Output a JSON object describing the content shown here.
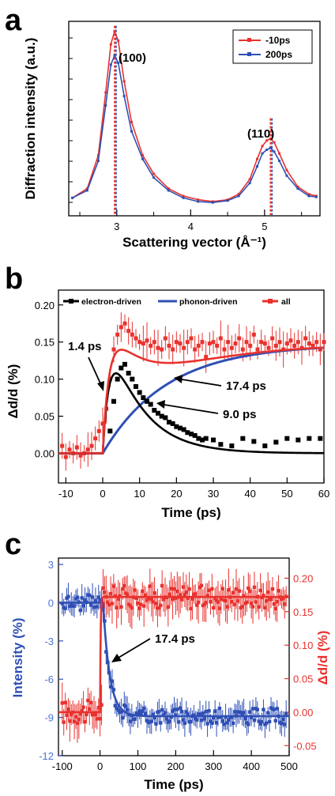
{
  "colors": {
    "red": "#e8322e",
    "blue": "#2f4fb5",
    "black": "#000000",
    "lightblue": "#4e73d6"
  },
  "chart_data": [
    {
      "panel": "a",
      "type": "line",
      "xlabel": "Scattering vector (Å⁻¹)",
      "ylabel": "Diffraction intensity (a.u.)",
      "xlim": [
        2.35,
        5.75
      ],
      "xticks": [
        "3",
        "4",
        "5"
      ],
      "legend_position": "top-right",
      "series": [
        {
          "name": "-10ps",
          "color": "red",
          "x": [
            2.4,
            2.6,
            2.75,
            2.85,
            2.92,
            2.97,
            3.02,
            3.1,
            3.2,
            3.35,
            3.5,
            3.7,
            3.9,
            4.1,
            4.3,
            4.5,
            4.65,
            4.8,
            4.9,
            4.97,
            5.03,
            5.08,
            5.13,
            5.2,
            5.3,
            5.45,
            5.6,
            5.7
          ],
          "y": [
            0.05,
            0.1,
            0.28,
            0.62,
            0.88,
            0.95,
            0.9,
            0.68,
            0.46,
            0.28,
            0.18,
            0.1,
            0.06,
            0.04,
            0.03,
            0.04,
            0.07,
            0.15,
            0.26,
            0.33,
            0.36,
            0.37,
            0.35,
            0.29,
            0.2,
            0.11,
            0.07,
            0.06
          ]
        },
        {
          "name": "200ps",
          "color": "blue",
          "x": [
            2.4,
            2.6,
            2.75,
            2.85,
            2.92,
            2.97,
            3.02,
            3.1,
            3.2,
            3.35,
            3.5,
            3.7,
            3.9,
            4.1,
            4.3,
            4.5,
            4.65,
            4.8,
            4.9,
            4.97,
            5.03,
            5.08,
            5.13,
            5.2,
            5.3,
            5.45,
            5.6,
            5.7
          ],
          "y": [
            0.05,
            0.09,
            0.25,
            0.55,
            0.77,
            0.82,
            0.78,
            0.6,
            0.41,
            0.26,
            0.16,
            0.09,
            0.05,
            0.03,
            0.025,
            0.035,
            0.06,
            0.13,
            0.22,
            0.29,
            0.31,
            0.32,
            0.3,
            0.25,
            0.17,
            0.1,
            0.06,
            0.055
          ]
        }
      ],
      "peak_positions": {
        "-10ps": [
          2.97,
          5.08
        ],
        "200ps": [
          2.99,
          5.1
        ]
      },
      "annotations": [
        "(100)",
        "(110)"
      ]
    },
    {
      "panel": "b",
      "type": "scatter",
      "xlabel": "Time (ps)",
      "ylabel": "Δd/d (%)",
      "xlim": [
        -12,
        60
      ],
      "ylim": [
        -0.04,
        0.22
      ],
      "xticks": [
        -10,
        0,
        10,
        20,
        30,
        40,
        50,
        60
      ],
      "yticks": [
        0.0,
        0.05,
        0.1,
        0.15,
        0.2
      ],
      "legend_position": "top",
      "series": [
        {
          "name": "electron-driven",
          "color": "black",
          "kind": "fit+points",
          "points_x": [
            2,
            3,
            4,
            5,
            6,
            7,
            8,
            9,
            10,
            11,
            12,
            13,
            14,
            15,
            16,
            17,
            18,
            19,
            20,
            21,
            22,
            23,
            24,
            25,
            26,
            27,
            28,
            30,
            32,
            35,
            38,
            41,
            44,
            47,
            50,
            53,
            56,
            59
          ],
          "points_y": [
            0.03,
            0.07,
            0.1,
            0.115,
            0.12,
            0.108,
            0.1,
            0.09,
            0.082,
            0.075,
            0.07,
            0.066,
            0.058,
            0.054,
            0.05,
            0.048,
            0.042,
            0.04,
            0.036,
            0.034,
            0.032,
            0.028,
            0.026,
            0.024,
            0.02,
            0.018,
            0.02,
            0.018,
            0.012,
            0.01,
            0.02,
            0.016,
            0.01,
            0.015,
            0.02,
            0.018,
            0.02,
            0.02
          ]
        },
        {
          "name": "phonon-driven",
          "color": "blue",
          "kind": "fit"
        },
        {
          "name": "all",
          "color": "red",
          "kind": "fit+points-with-errorbars",
          "points_x": [
            -11,
            -10,
            -9,
            -8,
            -7,
            -6,
            -5,
            -4,
            -3,
            -2,
            -1,
            0,
            1,
            2,
            3,
            4,
            5,
            6,
            7,
            8,
            9,
            10,
            11,
            12,
            13,
            14,
            15,
            16,
            17,
            18,
            19,
            20,
            21,
            22,
            23,
            24,
            25,
            26,
            27,
            28,
            29,
            30,
            31,
            32,
            33,
            34,
            35,
            36,
            37,
            38,
            39,
            40,
            41,
            42,
            43,
            44,
            45,
            46,
            47,
            48,
            49,
            50,
            51,
            52,
            53,
            54,
            55,
            56,
            57,
            58,
            59,
            60
          ],
          "points_y": [
            0.01,
            -0.005,
            0.005,
            0.0,
            0.008,
            -0.003,
            0.0,
            0.005,
            0.01,
            0.02,
            0.03,
            0.04,
            0.06,
            0.1,
            0.14,
            0.16,
            0.17,
            0.175,
            0.165,
            0.16,
            0.155,
            0.15,
            0.148,
            0.152,
            0.145,
            0.15,
            0.142,
            0.14,
            0.155,
            0.145,
            0.14,
            0.15,
            0.148,
            0.142,
            0.15,
            0.155,
            0.14,
            0.145,
            0.15,
            0.13,
            0.148,
            0.15,
            0.145,
            0.155,
            0.14,
            0.15,
            0.142,
            0.148,
            0.155,
            0.14,
            0.15,
            0.145,
            0.16,
            0.14,
            0.15,
            0.148,
            0.142,
            0.155,
            0.145,
            0.15,
            0.14,
            0.148,
            0.152,
            0.145,
            0.15,
            0.142,
            0.155,
            0.148,
            0.145,
            0.15,
            0.14,
            0.15
          ]
        }
      ],
      "annotations": [
        "1.4 ps",
        "17.4 ps",
        "9.0 ps"
      ]
    },
    {
      "panel": "c",
      "type": "scatter",
      "xlabel": "Time (ps)",
      "ylabel_left": "Intensity (%)",
      "ylabel_right": "Δd/d (%)",
      "xlim": [
        -110,
        500
      ],
      "ylim_left": [
        -12,
        3.5
      ],
      "ylim_right": [
        -0.065,
        0.23
      ],
      "xticks": [
        -100,
        0,
        100,
        200,
        300,
        400,
        500
      ],
      "yticks_left": [
        -12,
        -9,
        -6,
        -3,
        0,
        3
      ],
      "yticks_right": [
        -0.05,
        0.0,
        0.05,
        0.1,
        0.15,
        0.2
      ],
      "series": [
        {
          "name": "Intensity",
          "color": "blue",
          "axis": "left",
          "kind": "fit+points-with-errorbars"
        },
        {
          "name": "Δd/d",
          "color": "red",
          "axis": "right",
          "kind": "fit+points-with-errorbars"
        }
      ],
      "annotations": [
        "17.4 ps"
      ]
    }
  ],
  "panels": {
    "a": {
      "letter": "a",
      "ylabel": "Diffraction intensity (a.u.)",
      "xlabel": "Scattering vector (Å⁻¹)",
      "xticks": [
        "3",
        "4",
        "5"
      ],
      "legend": [
        "-10ps",
        "200ps"
      ],
      "annot_100": "(100)",
      "annot_110": "(110)"
    },
    "b": {
      "letter": "b",
      "ylabel": "Δd/d (%)",
      "xlabel": "Time (ps)",
      "yticks": [
        "0.00",
        "0.05",
        "0.10",
        "0.15",
        "0.20"
      ],
      "xticks": [
        "-10",
        "0",
        "10",
        "20",
        "30",
        "40",
        "50",
        "60"
      ],
      "legend": [
        "electron-driven",
        "phonon-driven",
        "all"
      ],
      "annot_1": "1.4 ps",
      "annot_2": "17.4 ps",
      "annot_3": "9.0 ps"
    },
    "c": {
      "letter": "c",
      "ylabel_left": "Intensity (%)",
      "ylabel_right": "Δd/d (%)",
      "xlabel": "Time (ps)",
      "yticks_left": [
        "-12",
        "-9",
        "-6",
        "-3",
        "0",
        "3"
      ],
      "yticks_right": [
        "-0.05",
        "0.00",
        "0.05",
        "0.10",
        "0.15",
        "0.20"
      ],
      "xticks": [
        "-100",
        "0",
        "100",
        "200",
        "300",
        "400",
        "500"
      ],
      "annot_1": "17.4 ps"
    }
  }
}
